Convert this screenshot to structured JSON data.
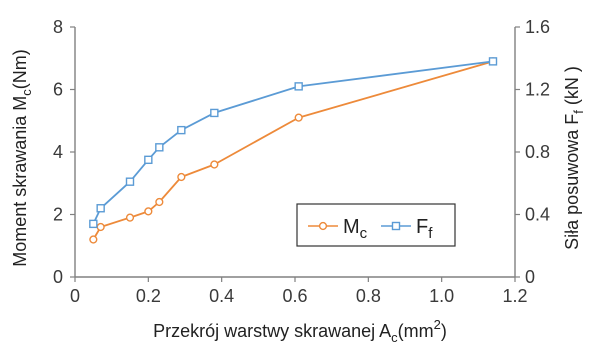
{
  "chart_data": {
    "type": "line",
    "xlabel": "Przekrój warstwy skrawanej A",
    "xlabel_sub": "c",
    "xlabel_unit_open": "(mm",
    "xlabel_unit_sup": "2",
    "xlabel_unit_close": ")",
    "ylabel_left": "Moment skrawania M",
    "ylabel_left_sub": "c",
    "ylabel_left_unit": "(Nm)",
    "ylabel_right": "Siła posuwowa F",
    "ylabel_right_sub": "f",
    "ylabel_right_unit": " (kN )",
    "xlim": [
      0,
      1.2
    ],
    "ylim_left": [
      0,
      8
    ],
    "ylim_right": [
      0,
      1.6
    ],
    "x_ticks": [
      "0",
      "0.2",
      "0.4",
      "0.6",
      "0.8",
      "1.0",
      "1.2"
    ],
    "y_left_ticks": [
      "0",
      "2",
      "4",
      "6",
      "8"
    ],
    "y_right_ticks": [
      "0",
      "0.4",
      "0.8",
      "1.2",
      "1.6"
    ],
    "grid": false,
    "legend_position": "lower-right",
    "series": [
      {
        "name": "M",
        "name_sub": "c",
        "axis": "left",
        "color": "#ED8A3A",
        "marker": "circle",
        "x": [
          0.05,
          0.07,
          0.15,
          0.2,
          0.23,
          0.29,
          0.38,
          0.61,
          1.14
        ],
        "y": [
          1.2,
          1.6,
          1.9,
          2.1,
          2.4,
          3.2,
          3.6,
          5.1,
          6.9
        ]
      },
      {
        "name": "F",
        "name_sub": "f",
        "axis": "right",
        "color": "#5B9BD5",
        "marker": "square",
        "x": [
          0.05,
          0.07,
          0.15,
          0.2,
          0.23,
          0.29,
          0.38,
          0.61,
          1.14
        ],
        "y": [
          0.34,
          0.44,
          0.61,
          0.75,
          0.83,
          0.94,
          1.05,
          1.22,
          1.38
        ]
      }
    ]
  }
}
